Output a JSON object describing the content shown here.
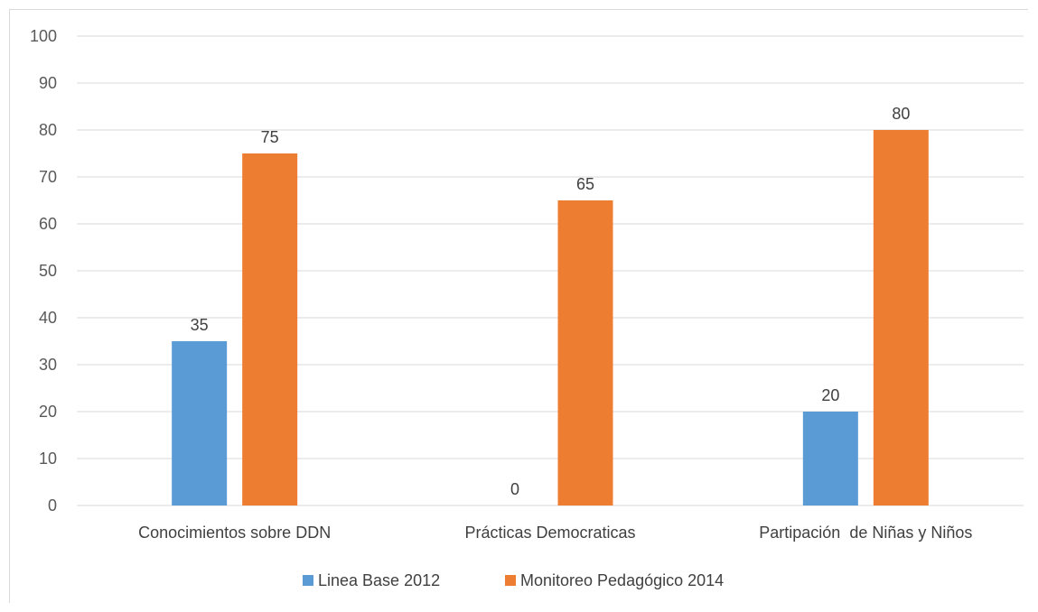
{
  "chart_data": {
    "type": "bar",
    "categories": [
      "Conocimientos sobre DDN",
      "Prácticas Democraticas",
      "Partipación  de Niñas y Niños"
    ],
    "series": [
      {
        "name": "Linea Base 2012",
        "values": [
          35,
          0,
          20
        ],
        "color": "#5b9bd5"
      },
      {
        "name": "Monitoreo Pedagógico 2014",
        "values": [
          75,
          65,
          80
        ],
        "color": "#ed7d31"
      }
    ],
    "title": "",
    "xlabel": "",
    "ylabel": "",
    "ylim": [
      0,
      100
    ],
    "yticks": [
      0,
      10,
      20,
      30,
      40,
      50,
      60,
      70,
      80,
      90,
      100
    ],
    "grid": true,
    "legend": "bottom",
    "data_labels": true
  }
}
